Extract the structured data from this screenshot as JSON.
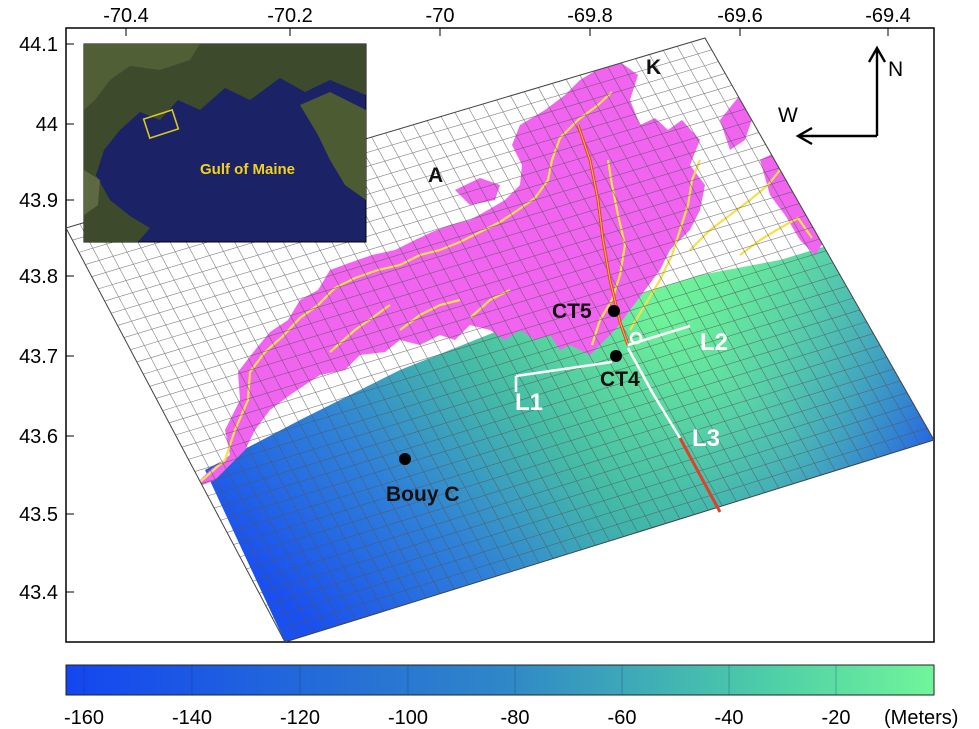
{
  "map": {
    "lon_ticks": [
      "-70.4",
      "-70.2",
      "-70",
      "-69.8",
      "-69.6",
      "-69.4"
    ],
    "lat_ticks": [
      "44.1",
      "44",
      "43.9",
      "43.8",
      "43.7",
      "43.6",
      "43.5",
      "43.4"
    ],
    "inset_label": "Gulf of Maine",
    "place_labels": {
      "a": "A",
      "k": "K"
    },
    "stations": {
      "ct5": "CT5",
      "ct4": "CT4",
      "buoy": "Bouy C"
    },
    "transects": {
      "l1": "L1",
      "l2": "L2",
      "l3": "L3"
    },
    "compass": {
      "north": "N",
      "west": "W"
    }
  },
  "colorbar": {
    "ticks": [
      "-160",
      "-140",
      "-120",
      "-100",
      "-80",
      "-60",
      "-40",
      "-20"
    ],
    "unit": "(Meters)",
    "colors": {
      "deep": "#1446f0",
      "mid": "#3aa8b4",
      "shallow": "#6ef59a"
    }
  },
  "colors": {
    "land": "#f064f0",
    "coast": "#f5e04a",
    "transect": "#ffffff",
    "channel": "#e0402a"
  }
}
